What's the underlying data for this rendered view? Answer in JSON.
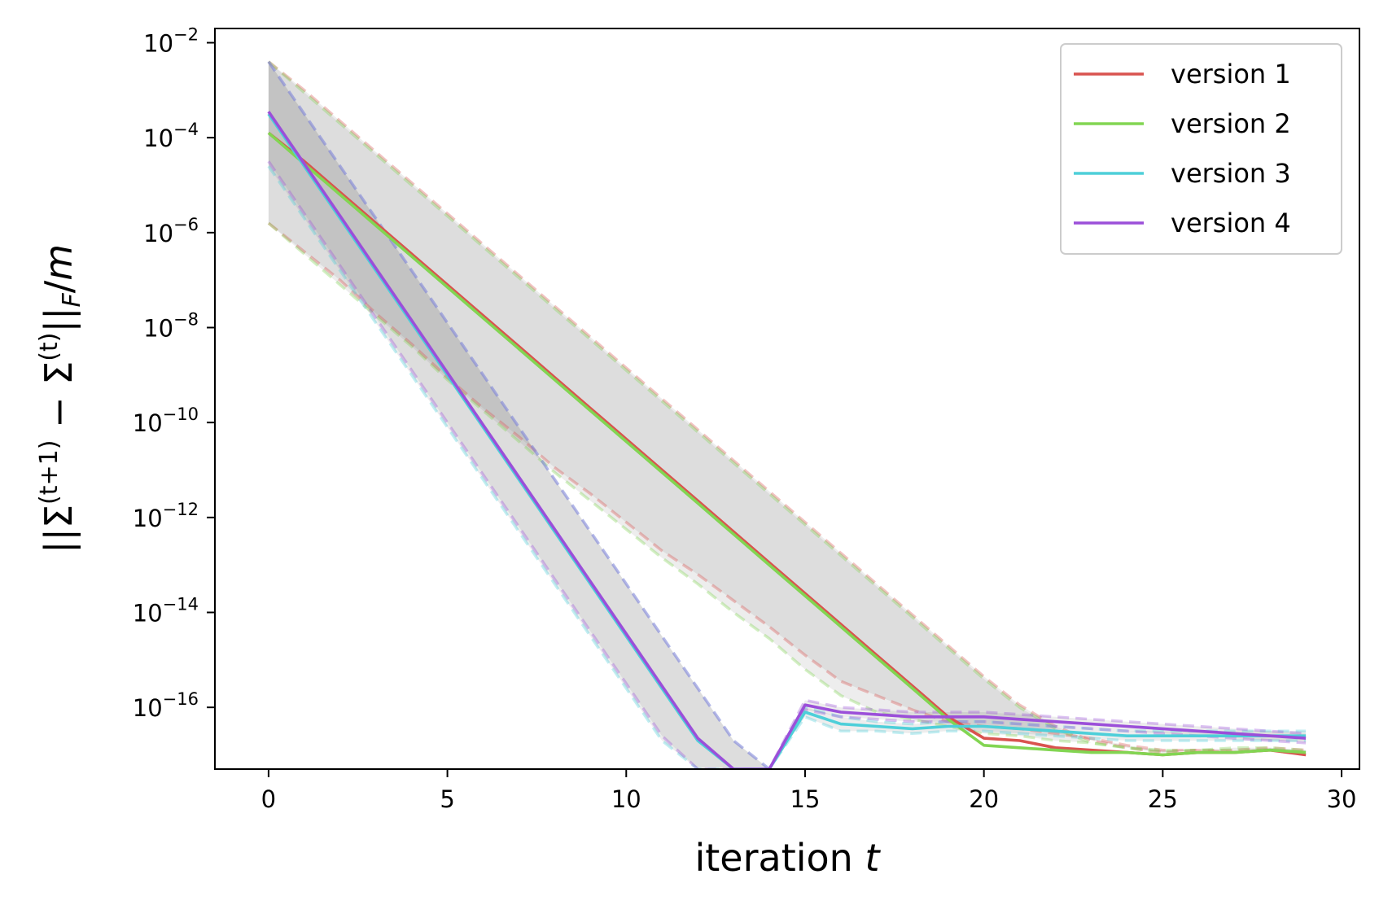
{
  "chart_data": {
    "type": "line",
    "title": "",
    "xlabel": "iteration t",
    "ylabel": "||Σ(t+1) − Σ(t)||F/m",
    "yscale": "log",
    "xlim": [
      -1.5,
      30.5
    ],
    "ylim_log10": [
      -17.3,
      -1.7
    ],
    "x_ticks": [
      0,
      5,
      10,
      15,
      20,
      25,
      30
    ],
    "x_tick_labels": [
      "0",
      "5",
      "10",
      "15",
      "20",
      "25",
      "30"
    ],
    "y_ticks_log10": [
      -2,
      -4,
      -6,
      -8,
      -10,
      -12,
      -14,
      -16
    ],
    "y_tick_labels": [
      {
        "base": "10",
        "exp": "−2"
      },
      {
        "base": "10",
        "exp": "−4"
      },
      {
        "base": "10",
        "exp": "−6"
      },
      {
        "base": "10",
        "exp": "−8"
      },
      {
        "base": "10",
        "exp": "−10"
      },
      {
        "base": "10",
        "exp": "−12"
      },
      {
        "base": "10",
        "exp": "−14"
      },
      {
        "base": "10",
        "exp": "−16"
      }
    ],
    "legend_position": "upper right",
    "x": [
      0,
      1,
      2,
      3,
      4,
      5,
      6,
      7,
      8,
      9,
      10,
      11,
      12,
      13,
      14,
      15,
      16,
      17,
      18,
      19,
      20,
      21,
      22,
      23,
      24,
      25,
      26,
      27,
      28,
      29
    ],
    "series": [
      {
        "name": "version 1",
        "color": "#d9534f",
        "log10_mean": [
          -3.9,
          -4.5,
          -5.15,
          -5.8,
          -6.45,
          -7.1,
          -7.75,
          -8.4,
          -9.05,
          -9.7,
          -10.35,
          -11.0,
          -11.65,
          -12.3,
          -12.95,
          -13.6,
          -14.25,
          -14.9,
          -15.55,
          -16.2,
          -16.65,
          -16.7,
          -16.85,
          -16.9,
          -16.95,
          -17.0,
          -16.95,
          -16.95,
          -16.9,
          -17.0
        ],
        "log10_upper": [
          -2.4,
          -3.0,
          -3.65,
          -4.3,
          -4.95,
          -5.6,
          -6.25,
          -6.9,
          -7.55,
          -8.2,
          -8.85,
          -9.5,
          -10.15,
          -10.8,
          -11.45,
          -12.1,
          -12.75,
          -13.4,
          -14.05,
          -14.7,
          -15.35,
          -15.95,
          -16.4,
          -16.7,
          -16.85,
          -16.95,
          -16.9,
          -16.9,
          -16.85,
          -16.9
        ],
        "log10_lower": [
          -5.8,
          -6.4,
          -7.0,
          -7.7,
          -8.35,
          -9.05,
          -9.7,
          -10.3,
          -10.95,
          -11.5,
          -12.1,
          -12.7,
          -13.2,
          -13.75,
          -14.3,
          -14.9,
          -15.45,
          -15.75,
          -16.05,
          -16.3,
          -16.4,
          -16.45,
          -16.55,
          -16.65,
          -16.8,
          -16.9,
          -16.9,
          -16.95,
          -16.9,
          -17.0
        ]
      },
      {
        "name": "version 2",
        "color": "#82d552",
        "log10_mean": [
          -3.9,
          -4.55,
          -5.2,
          -5.85,
          -6.5,
          -7.15,
          -7.8,
          -8.45,
          -9.1,
          -9.75,
          -10.4,
          -11.05,
          -11.7,
          -12.35,
          -13.0,
          -13.65,
          -14.3,
          -14.95,
          -15.6,
          -16.25,
          -16.8,
          -16.85,
          -16.9,
          -16.95,
          -16.95,
          -17.0,
          -16.95,
          -16.95,
          -16.9,
          -16.95
        ],
        "log10_upper": [
          -2.4,
          -3.05,
          -3.7,
          -4.35,
          -5.0,
          -5.65,
          -6.3,
          -6.95,
          -7.6,
          -8.25,
          -8.9,
          -9.55,
          -10.2,
          -10.85,
          -11.5,
          -12.15,
          -12.8,
          -13.45,
          -14.1,
          -14.75,
          -15.4,
          -16.0,
          -16.45,
          -16.75,
          -16.85,
          -16.95,
          -16.9,
          -16.85,
          -16.85,
          -16.9
        ],
        "log10_lower": [
          -5.8,
          -6.45,
          -7.1,
          -7.75,
          -8.4,
          -9.1,
          -9.75,
          -10.4,
          -11.05,
          -11.65,
          -12.25,
          -12.85,
          -13.4,
          -14.0,
          -14.55,
          -15.2,
          -15.75,
          -16.1,
          -16.25,
          -16.4,
          -16.55,
          -16.6,
          -16.7,
          -16.75,
          -16.85,
          -16.9,
          -16.9,
          -16.9,
          -16.9,
          -16.95
        ]
      },
      {
        "name": "version 3",
        "color": "#4ecfd9",
        "log10_mean": [
          -3.5,
          -4.6,
          -5.7,
          -6.8,
          -7.9,
          -9.0,
          -10.1,
          -11.2,
          -12.3,
          -13.4,
          -14.5,
          -15.6,
          -16.7,
          -17.8,
          -18.9,
          -16.1,
          -16.35,
          -16.4,
          -16.45,
          -16.4,
          -16.4,
          -16.45,
          -16.5,
          -16.55,
          -16.6,
          -16.6,
          -16.6,
          -16.6,
          -16.6,
          -16.6
        ],
        "log10_upper": [
          -2.4,
          -3.5,
          -4.6,
          -5.7,
          -6.8,
          -7.9,
          -9.0,
          -10.1,
          -11.2,
          -12.3,
          -13.4,
          -14.5,
          -15.6,
          -16.7,
          -17.8,
          -16.0,
          -16.2,
          -16.3,
          -16.35,
          -16.3,
          -16.3,
          -16.35,
          -16.4,
          -16.45,
          -16.5,
          -16.5,
          -16.5,
          -16.5,
          -16.5,
          -16.5
        ],
        "log10_lower": [
          -4.6,
          -5.7,
          -6.8,
          -7.9,
          -9.0,
          -10.1,
          -11.2,
          -12.3,
          -13.4,
          -14.5,
          -15.6,
          -16.7,
          -17.8,
          -18.9,
          -20.0,
          -16.2,
          -16.5,
          -16.5,
          -16.55,
          -16.5,
          -16.5,
          -16.55,
          -16.6,
          -16.65,
          -16.7,
          -16.7,
          -16.7,
          -16.7,
          -16.7,
          -16.7
        ]
      },
      {
        "name": "version 4",
        "color": "#9b4fd9",
        "log10_mean": [
          -3.45,
          -4.55,
          -5.65,
          -6.75,
          -7.85,
          -8.95,
          -10.05,
          -11.15,
          -12.25,
          -13.35,
          -14.45,
          -15.55,
          -16.65,
          -17.75,
          -18.85,
          -15.95,
          -16.1,
          -16.15,
          -16.2,
          -16.2,
          -16.2,
          -16.25,
          -16.3,
          -16.35,
          -16.4,
          -16.45,
          -16.5,
          -16.55,
          -16.6,
          -16.65
        ],
        "log10_upper": [
          -2.4,
          -3.5,
          -4.6,
          -5.7,
          -6.8,
          -7.9,
          -9.0,
          -10.1,
          -11.2,
          -12.3,
          -13.4,
          -14.5,
          -15.6,
          -16.7,
          -17.8,
          -15.85,
          -16.0,
          -16.05,
          -16.1,
          -16.1,
          -16.1,
          -16.15,
          -16.2,
          -16.25,
          -16.3,
          -16.35,
          -16.4,
          -16.45,
          -16.5,
          -16.55
        ],
        "log10_lower": [
          -4.5,
          -5.6,
          -6.7,
          -7.8,
          -8.9,
          -10.0,
          -11.1,
          -12.2,
          -13.3,
          -14.4,
          -15.5,
          -16.6,
          -17.7,
          -18.8,
          -19.9,
          -16.05,
          -16.2,
          -16.25,
          -16.3,
          -16.3,
          -16.3,
          -16.35,
          -16.4,
          -16.45,
          -16.5,
          -16.55,
          -16.6,
          -16.65,
          -16.7,
          -16.75
        ]
      }
    ]
  }
}
